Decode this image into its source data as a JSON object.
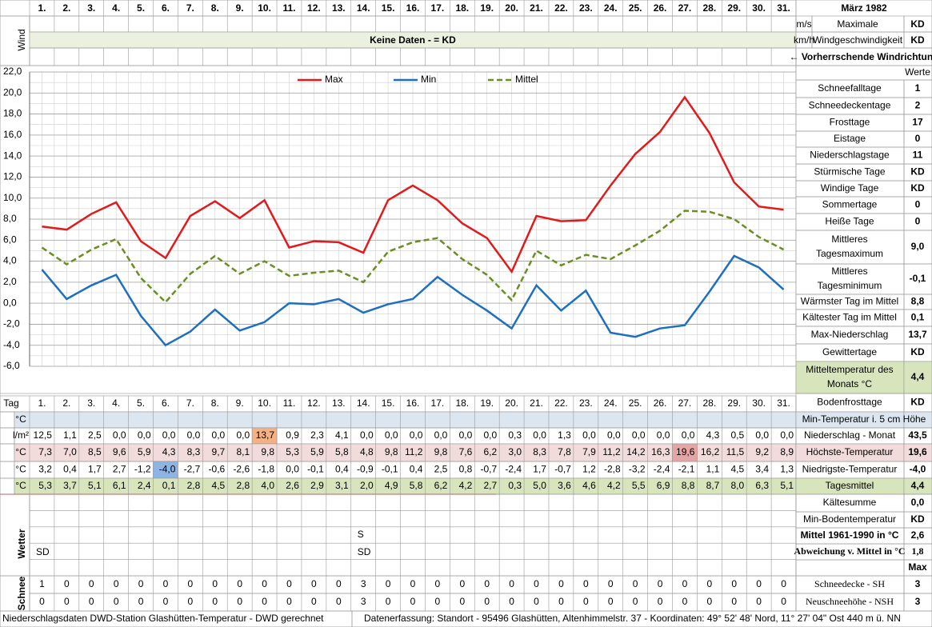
{
  "header": {
    "title": "März 1982",
    "days": [
      "1.",
      "2.",
      "3.",
      "4.",
      "5.",
      "6.",
      "7.",
      "8.",
      "9.",
      "10.",
      "11.",
      "12.",
      "13.",
      "14.",
      "15.",
      "16.",
      "17.",
      "18.",
      "19.",
      "20.",
      "21.",
      "22.",
      "23.",
      "24.",
      "25.",
      "26.",
      "27.",
      "28.",
      "29.",
      "30.",
      "31."
    ]
  },
  "wind": {
    "label": "Wind",
    "no_data": "Keine Daten -  = KD",
    "units": [
      "m/s",
      "km/h"
    ],
    "description": [
      "Maximale",
      "Windgeschwindigkeit"
    ],
    "values": [
      "KD",
      "KD"
    ],
    "direction": "← Vorherrschende Windrichtung"
  },
  "chart_data": {
    "type": "line",
    "categories": [
      "1.",
      "2.",
      "3.",
      "4.",
      "5.",
      "6.",
      "7.",
      "8.",
      "9.",
      "10.",
      "11.",
      "12.",
      "13.",
      "14.",
      "15.",
      "16.",
      "17.",
      "18.",
      "19.",
      "20.",
      "21.",
      "22.",
      "23.",
      "24.",
      "25.",
      "26.",
      "27.",
      "28.",
      "29.",
      "30.",
      "31."
    ],
    "series": [
      {
        "name": "Max",
        "color": "#e31a1c",
        "values": [
          7.3,
          7.0,
          8.5,
          9.6,
          5.9,
          4.3,
          8.3,
          9.7,
          8.1,
          9.8,
          5.3,
          5.9,
          5.8,
          4.8,
          9.8,
          11.2,
          9.8,
          7.6,
          6.2,
          3.0,
          8.3,
          7.8,
          7.9,
          11.2,
          14.2,
          16.3,
          19.6,
          16.2,
          11.5,
          9.2,
          8.9
        ]
      },
      {
        "name": "Min",
        "color": "#1f6fc0",
        "values": [
          3.2,
          0.4,
          1.7,
          2.7,
          -1.2,
          -4.0,
          -2.7,
          -0.6,
          -2.6,
          -1.8,
          0.0,
          -0.1,
          0.4,
          -0.9,
          -0.1,
          0.4,
          2.5,
          0.8,
          -0.7,
          -2.4,
          1.7,
          -0.7,
          1.2,
          -2.8,
          -3.2,
          -2.4,
          -2.1,
          1.1,
          4.5,
          3.4,
          1.3
        ]
      },
      {
        "name": "Mittel",
        "color": "#6b8e23",
        "dashed": true,
        "values": [
          5.3,
          3.7,
          5.1,
          6.1,
          2.4,
          0.1,
          2.8,
          4.5,
          2.8,
          4.0,
          2.6,
          2.9,
          3.1,
          2.0,
          4.9,
          5.8,
          6.2,
          4.2,
          2.7,
          0.3,
          5.0,
          3.6,
          4.6,
          4.2,
          5.5,
          6.9,
          8.8,
          8.7,
          8.0,
          6.3,
          5.1
        ]
      }
    ],
    "ylim": [
      -6,
      22
    ],
    "yticks": [
      {
        "value": 22,
        "label": "22,0"
      },
      {
        "value": 20,
        "label": "20,0"
      },
      {
        "value": 18,
        "label": "18,0"
      },
      {
        "value": 16,
        "label": "16,0"
      },
      {
        "value": 14,
        "label": "14,0"
      },
      {
        "value": 12,
        "label": "12,0"
      },
      {
        "value": 10,
        "label": "10,0"
      },
      {
        "value": 8,
        "label": "8,0"
      },
      {
        "value": 6,
        "label": "6,0"
      },
      {
        "value": 4,
        "label": "4,0"
      },
      {
        "value": 2,
        "label": "2,0"
      },
      {
        "value": 0,
        "label": "0,0"
      },
      {
        "value": -2,
        "label": "-2,0"
      },
      {
        "value": -4,
        "label": "-4,0"
      },
      {
        "value": -6,
        "label": "-6,0"
      }
    ],
    "grid": true
  },
  "tag_label": "Tag",
  "stats": {
    "header": "Werte",
    "items": [
      {
        "label": [
          "Schneefalltage"
        ],
        "value": "1"
      },
      {
        "label": [
          "Schneedeckentage"
        ],
        "value": "2"
      },
      {
        "label": [
          "Frosttage"
        ],
        "value": "17"
      },
      {
        "label": [
          "Eistage"
        ],
        "value": "0"
      },
      {
        "label": [
          "Niederschlagstage"
        ],
        "value": "11"
      },
      {
        "label": [
          "Stürmische Tage"
        ],
        "value": "KD"
      },
      {
        "label": [
          "Windige Tage"
        ],
        "value": "KD"
      },
      {
        "label": [
          "Sommertage"
        ],
        "value": "0"
      },
      {
        "label": [
          "Heiße Tage"
        ],
        "value": "0"
      },
      {
        "label": [
          "Mittleres",
          "Tagesmaximum"
        ],
        "value": "9,0"
      },
      {
        "label": [
          "Mittleres",
          "Tagesminimum"
        ],
        "value": "-0,1"
      },
      {
        "label": [
          "Wärmster Tag im Mittel"
        ],
        "value": "8,8"
      },
      {
        "label": [
          "Kältester Tag im Mittel"
        ],
        "value": "0,1"
      },
      {
        "label": [
          "Max-Niederschlag"
        ],
        "value": "13,7"
      },
      {
        "label": [
          "Gewittertage"
        ],
        "value": "KD"
      },
      {
        "label": [
          "Mitteltemperatur des",
          "Monats °C"
        ],
        "value": "4,4",
        "fill": "#d8e4bc"
      },
      {
        "label": [
          "Bodenfrosttage"
        ],
        "value": "KD"
      }
    ]
  },
  "table": {
    "rows": [
      {
        "unit": "°C",
        "label": "Min-Temperatur i. 5 cm Höhe",
        "fill": "#dce6f1"
      },
      {
        "unit": "l/m²",
        "label": "Niederschlag - Monat",
        "total": "43,5",
        "highlight": {
          "index": 9,
          "color": "#f4b183"
        },
        "cells": [
          "12,5",
          "1,1",
          "2,5",
          "0,0",
          "0,0",
          "0,0",
          "0,0",
          "0,0",
          "0,0",
          "13,7",
          "0,9",
          "2,3",
          "4,1",
          "0,0",
          "0,0",
          "0,0",
          "0,0",
          "0,0",
          "0,0",
          "0,3",
          "0,0",
          "1,3",
          "0,0",
          "0,0",
          "0,0",
          "0,0",
          "0,0",
          "4,3",
          "0,5",
          "0,0",
          "0,0"
        ]
      },
      {
        "unit": "°C",
        "label": "Höchste-Temperatur",
        "total": "19,6",
        "fill": "#f2dcdb",
        "highlight": {
          "index": 26,
          "color": "#e6a5a5"
        },
        "cells": [
          "7,3",
          "7,0",
          "8,5",
          "9,6",
          "5,9",
          "4,3",
          "8,3",
          "9,7",
          "8,1",
          "9,8",
          "5,3",
          "5,9",
          "5,8",
          "4,8",
          "9,8",
          "11,2",
          "9,8",
          "7,6",
          "6,2",
          "3,0",
          "8,3",
          "7,8",
          "7,9",
          "11,2",
          "14,2",
          "16,3",
          "19,6",
          "16,2",
          "11,5",
          "9,2",
          "8,9"
        ]
      },
      {
        "unit": "°C",
        "label": "Niedrigste-Temperatur",
        "total": "-4,0",
        "highlight": {
          "index": 5,
          "color": "#8db4e2"
        },
        "cells": [
          "3,2",
          "0,4",
          "1,7",
          "2,7",
          "-1,2",
          "-4,0",
          "-2,7",
          "-0,6",
          "-2,6",
          "-1,8",
          "0,0",
          "-0,1",
          "0,4",
          "-0,9",
          "-0,1",
          "0,4",
          "2,5",
          "0,8",
          "-0,7",
          "-2,4",
          "1,7",
          "-0,7",
          "1,2",
          "-2,8",
          "-3,2",
          "-2,4",
          "-2,1",
          "1,1",
          "4,5",
          "3,4",
          "1,3"
        ]
      },
      {
        "unit": "°C",
        "label": "Tagesmittel",
        "total": "4,4",
        "fill": "#d8e4bc",
        "cells": [
          "5,3",
          "3,7",
          "5,1",
          "6,1",
          "2,4",
          "0,1",
          "2,8",
          "4,5",
          "2,8",
          "4,0",
          "2,6",
          "2,9",
          "3,1",
          "2,0",
          "4,9",
          "5,8",
          "6,2",
          "4,2",
          "2,7",
          "0,3",
          "5,0",
          "3,6",
          "4,6",
          "4,2",
          "5,5",
          "6,9",
          "8,8",
          "8,7",
          "8,0",
          "6,3",
          "5,1"
        ]
      }
    ]
  },
  "summary": [
    {
      "label": "Kältesumme",
      "value": "0,0"
    },
    {
      "label": "Min-Bodentemperatur",
      "value": "KD"
    },
    {
      "label": "Mittel 1961-1990 in °C",
      "value": "2,6"
    },
    {
      "label": "Abweichung v. Mittel in °C",
      "value": "1,8",
      "color": "#e31a1c"
    },
    {
      "label": "Max"
    }
  ],
  "weather": {
    "label": "Wetter",
    "rows": [
      [
        null,
        null,
        null,
        null,
        null,
        null,
        null,
        null,
        null,
        null,
        null,
        null,
        null,
        "S",
        null,
        null,
        null,
        null,
        null,
        null,
        null,
        null,
        null,
        null,
        null,
        null,
        null,
        null,
        null,
        null,
        null
      ],
      [
        "SD",
        null,
        null,
        null,
        null,
        null,
        null,
        null,
        null,
        null,
        null,
        null,
        null,
        "SD",
        null,
        null,
        null,
        null,
        null,
        null,
        null,
        null,
        null,
        null,
        null,
        null,
        null,
        null,
        null,
        null,
        null
      ]
    ]
  },
  "snow": {
    "label": "Schnee",
    "rows": [
      {
        "label": "Schneedecke -  SH",
        "total": 3,
        "cells": [
          1,
          0,
          0,
          0,
          0,
          0,
          0,
          0,
          0,
          0,
          0,
          0,
          0,
          3,
          0,
          0,
          0,
          0,
          0,
          0,
          0,
          0,
          0,
          0,
          0,
          0,
          0,
          0,
          0,
          0,
          0
        ]
      },
      {
        "label": "Neuschneehöhe - NSH",
        "total": 3,
        "cells": [
          0,
          0,
          0,
          0,
          0,
          0,
          0,
          0,
          0,
          0,
          0,
          0,
          0,
          3,
          0,
          0,
          0,
          0,
          0,
          0,
          0,
          0,
          0,
          0,
          0,
          0,
          0,
          0,
          0,
          0,
          0
        ]
      }
    ]
  },
  "footer": {
    "left": "Niederschlagsdaten DWD-Station Glashütten-Temperatur -  DWD gerechnet",
    "right": "Datenerfassung: Standort -  95496 Glashütten, Altenhimmelstr. 37 - Koordinaten: 49° 52' 48' Nord,  11° 27' 04\" Ost  440 m ü. NN"
  }
}
